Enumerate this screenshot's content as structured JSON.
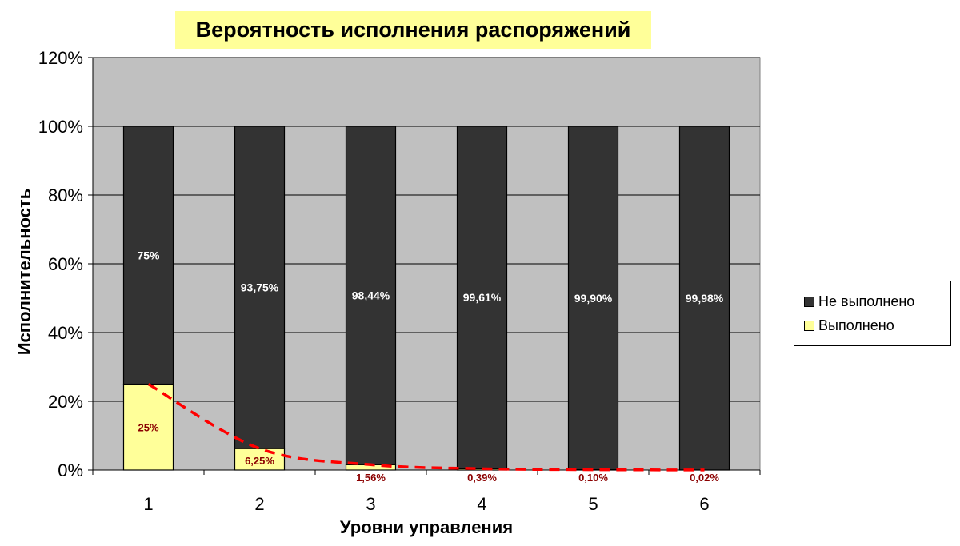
{
  "chart_data": {
    "type": "bar",
    "stacked": true,
    "title": "Вероятность исполнения распоряжений",
    "xlabel": "Уровни управления",
    "ylabel": "Исполнительность",
    "categories": [
      "1",
      "2",
      "3",
      "4",
      "5",
      "6"
    ],
    "ylim": [
      0,
      120
    ],
    "yticks": [
      0,
      20,
      40,
      60,
      80,
      100,
      120
    ],
    "ytick_labels": [
      "0%",
      "20%",
      "40%",
      "60%",
      "80%",
      "100%",
      "120%"
    ],
    "grid": true,
    "legend_position": "right",
    "series": [
      {
        "name": "Выполнено",
        "color": "#ffff99",
        "values": [
          25,
          6.25,
          1.56,
          0.39,
          0.1,
          0.02
        ],
        "labels": [
          "25%",
          "6,25%",
          "1,56%",
          "0,39%",
          "0,10%",
          "0,02%"
        ],
        "label_color": "#8b0000"
      },
      {
        "name": "Не выполнено",
        "color": "#333333",
        "values": [
          75,
          93.75,
          98.44,
          99.61,
          99.9,
          99.98
        ],
        "labels": [
          "75%",
          "93,75%",
          "98,44%",
          "99,61%",
          "99,90%",
          "99,98%"
        ],
        "label_color": "#ffffff"
      }
    ],
    "trendline": {
      "series": "Выполнено",
      "style": "dashed",
      "color": "#ff0000"
    },
    "plot_background": "#c0c0c0"
  }
}
